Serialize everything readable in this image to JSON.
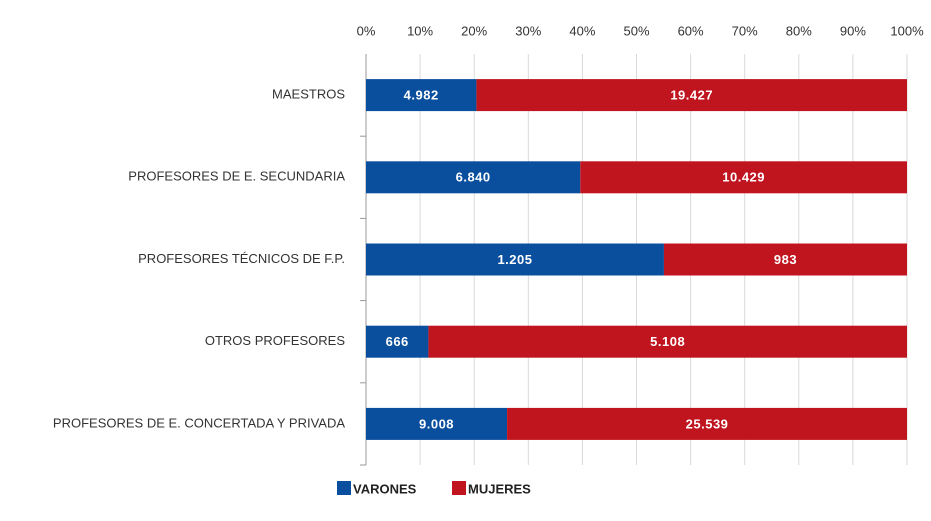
{
  "chart_data": {
    "type": "bar",
    "stacked": "percent",
    "orientation": "horizontal",
    "categories": [
      "MAESTROS",
      "PROFESORES DE E. SECUNDARIA",
      "PROFESORES TÉCNICOS DE F.P.",
      "OTROS PROFESORES",
      "PROFESORES DE E. CONCERTADA Y PRIVADA"
    ],
    "series": [
      {
        "name": "VARONES",
        "color": "#0a4f9e",
        "values": [
          4982,
          6840,
          1205,
          666,
          9008
        ],
        "value_labels": [
          "4.982",
          "6.840",
          "1.205",
          "666",
          "9.008"
        ]
      },
      {
        "name": "MUJERES",
        "color": "#c0141f",
        "values": [
          19427,
          10429,
          983,
          5108,
          25539
        ],
        "value_labels": [
          "19.427",
          "10.429",
          "983",
          "5.108",
          "25.539"
        ]
      }
    ],
    "xlim": [
      0,
      100
    ],
    "xticks": [
      {
        "value": 0,
        "label": "0%"
      },
      {
        "value": 10,
        "label": "10%"
      },
      {
        "value": 20,
        "label": "20%"
      },
      {
        "value": 30,
        "label": "30%"
      },
      {
        "value": 40,
        "label": "40%"
      },
      {
        "value": 50,
        "label": "50%"
      },
      {
        "value": 60,
        "label": "60%"
      },
      {
        "value": 70,
        "label": "70%"
      },
      {
        "value": 80,
        "label": "80%"
      },
      {
        "value": 90,
        "label": "90%"
      },
      {
        "value": 100,
        "label": "100%"
      }
    ],
    "grid": true,
    "legend": "bottom"
  }
}
